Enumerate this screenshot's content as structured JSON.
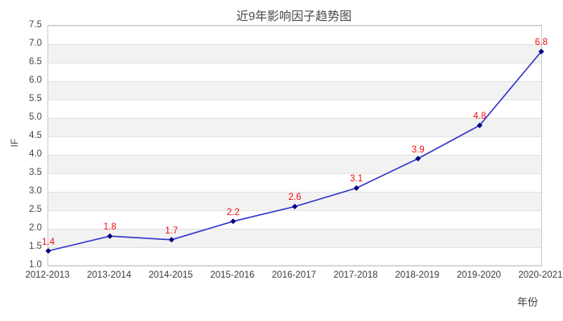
{
  "chart_data": {
    "type": "line",
    "title": "近9年影响因子趋势图",
    "xlabel": "年份",
    "ylabel": "IF",
    "categories": [
      "2012-2013",
      "2013-2014",
      "2014-2015",
      "2015-2016",
      "2016-2017",
      "2017-2018",
      "2018-2019",
      "2019-2020",
      "2020-2021"
    ],
    "series": [
      {
        "name": "IF",
        "values": [
          1.4,
          1.8,
          1.7,
          2.2,
          2.6,
          3.1,
          3.9,
          4.8,
          6.8
        ]
      }
    ],
    "point_labels": [
      "1.4",
      "1.8",
      "1.7",
      "2.2",
      "2.6",
      "3.1",
      "3.9",
      "4.8",
      "6.8"
    ],
    "ylim": [
      1.0,
      7.5
    ],
    "ytick_step": 0.5,
    "grid": "horizontal-bands",
    "legend_position": "none",
    "colors": {
      "line": "#3333cc",
      "marker": "#000080",
      "point_label": "#ee1111",
      "band": "#f2f2f2",
      "gridline": "#e2e2e2",
      "plot_border": "#cccccc",
      "title_text": "#4a4a4a",
      "tick_text": "#464646",
      "background": "#ffffff"
    }
  }
}
